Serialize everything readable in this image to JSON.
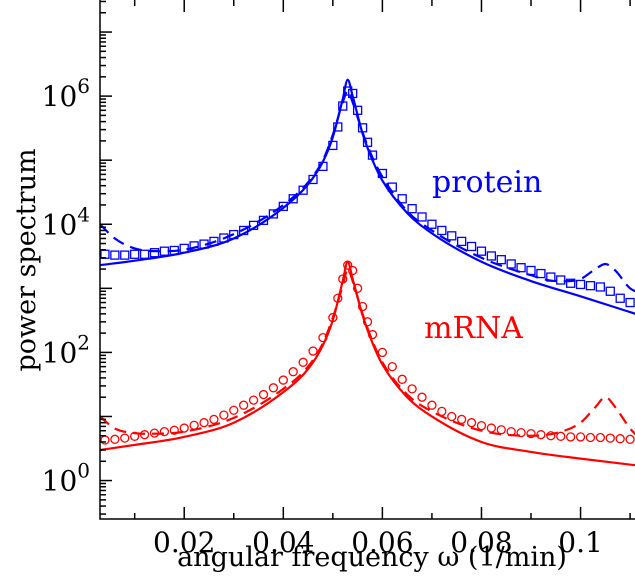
{
  "chart_data": {
    "type": "line",
    "title": "",
    "xlabel": "angular frequency ω (1/min)",
    "ylabel": "power spectrum",
    "xlim": [
      0.003,
      0.112
    ],
    "ylim_log10": [
      -0.6,
      7.5
    ],
    "log_y": true,
    "grid": false,
    "x_ticks": [
      {
        "value": 0.02,
        "label": "0.02"
      },
      {
        "value": 0.04,
        "label": "0.04"
      },
      {
        "value": 0.06,
        "label": "0.06"
      },
      {
        "value": 0.08,
        "label": "0.08"
      },
      {
        "value": 0.1,
        "label": "0.1"
      }
    ],
    "y_ticks": [
      {
        "exp": 0,
        "base": "10",
        "sup": "0"
      },
      {
        "exp": 2,
        "base": "10",
        "sup": "2"
      },
      {
        "exp": 4,
        "base": "10",
        "sup": "4"
      },
      {
        "exp": 6,
        "base": "10",
        "sup": "6"
      }
    ],
    "annotations": [
      {
        "text": "protein",
        "color": "#0000ff"
      },
      {
        "text": "mRNA",
        "color": "#ff0000"
      }
    ],
    "series": [
      {
        "group": "protein",
        "style": "solid",
        "color": "#0000ff",
        "x": [
          0.003,
          0.01,
          0.02,
          0.03,
          0.04,
          0.045,
          0.048,
          0.05,
          0.052,
          0.053,
          0.054,
          0.056,
          0.058,
          0.06,
          0.065,
          0.07,
          0.08,
          0.09,
          0.1,
          0.112
        ],
        "y": [
          2300,
          2700,
          3600,
          6000,
          18000,
          42000,
          95000,
          230000,
          900000,
          1800000,
          1000000,
          260000,
          100000,
          48000,
          15000,
          7200,
          2600,
          1300,
          750,
          380
        ]
      },
      {
        "group": "protein",
        "style": "dashed",
        "color": "#0000ff",
        "x": [
          0.003,
          0.006,
          0.01,
          0.015,
          0.02,
          0.03,
          0.04,
          0.045,
          0.048,
          0.05,
          0.052,
          0.053,
          0.054,
          0.056,
          0.058,
          0.06,
          0.065,
          0.07,
          0.08,
          0.09,
          0.095,
          0.1,
          0.103,
          0.105,
          0.107,
          0.11,
          0.112
        ],
        "y": [
          10000,
          6000,
          4200,
          3800,
          4000,
          7000,
          20000,
          45000,
          100000,
          250000,
          800000,
          1200000,
          800000,
          270000,
          110000,
          55000,
          16000,
          8000,
          3000,
          1600,
          1300,
          1400,
          2000,
          2400,
          1900,
          1000,
          850
        ]
      },
      {
        "group": "protein",
        "style": "markers",
        "marker": "square",
        "color": "#0000ff",
        "x": [
          0.004,
          0.006,
          0.008,
          0.01,
          0.012,
          0.014,
          0.016,
          0.018,
          0.02,
          0.022,
          0.024,
          0.026,
          0.028,
          0.03,
          0.032,
          0.034,
          0.036,
          0.038,
          0.04,
          0.042,
          0.044,
          0.046,
          0.048,
          0.05,
          0.051,
          0.052,
          0.053,
          0.054,
          0.055,
          0.056,
          0.057,
          0.058,
          0.06,
          0.062,
          0.064,
          0.066,
          0.068,
          0.07,
          0.072,
          0.074,
          0.076,
          0.078,
          0.08,
          0.082,
          0.084,
          0.086,
          0.088,
          0.09,
          0.092,
          0.094,
          0.096,
          0.098,
          0.1,
          0.102,
          0.104,
          0.106,
          0.108,
          0.11
        ],
        "y": [
          3400,
          3300,
          3300,
          3400,
          3400,
          3600,
          3800,
          3900,
          4200,
          4600,
          4900,
          5400,
          6100,
          6900,
          8000,
          9600,
          11500,
          14500,
          19000,
          25000,
          34000,
          50000,
          80000,
          170000,
          330000,
          700000,
          1200000,
          1100000,
          600000,
          320000,
          190000,
          120000,
          62000,
          38000,
          25000,
          17500,
          13000,
          10000,
          8000,
          6600,
          5400,
          4500,
          3800,
          3200,
          2800,
          2400,
          2100,
          1900,
          1700,
          1500,
          1350,
          1200,
          1150,
          1100,
          1050,
          900,
          700,
          600
        ]
      },
      {
        "group": "mRNA",
        "style": "solid",
        "color": "#ff0000",
        "x": [
          0.003,
          0.01,
          0.02,
          0.03,
          0.04,
          0.045,
          0.048,
          0.05,
          0.052,
          0.053,
          0.054,
          0.056,
          0.058,
          0.06,
          0.065,
          0.07,
          0.08,
          0.09,
          0.1,
          0.112
        ],
        "y": [
          3,
          3.6,
          4.8,
          8,
          24,
          55,
          130,
          320,
          1300,
          2600,
          1400,
          380,
          140,
          65,
          20,
          10,
          4,
          2.8,
          2.2,
          1.7
        ]
      },
      {
        "group": "mRNA",
        "style": "dashed",
        "color": "#ff0000",
        "x": [
          0.003,
          0.006,
          0.01,
          0.015,
          0.02,
          0.03,
          0.04,
          0.045,
          0.048,
          0.05,
          0.052,
          0.053,
          0.054,
          0.056,
          0.058,
          0.06,
          0.065,
          0.07,
          0.08,
          0.09,
          0.095,
          0.1,
          0.103,
          0.105,
          0.107,
          0.11,
          0.112
        ],
        "y": [
          10,
          6.5,
          5.5,
          5.4,
          5.8,
          9.5,
          27,
          60,
          140,
          350,
          1100,
          2000,
          1300,
          400,
          150,
          70,
          22,
          12,
          6,
          5,
          5.5,
          8,
          14,
          20,
          14,
          6.5,
          4.5
        ]
      },
      {
        "group": "mRNA",
        "style": "markers",
        "marker": "circle",
        "color": "#ff0000",
        "x": [
          0.004,
          0.006,
          0.008,
          0.01,
          0.012,
          0.014,
          0.016,
          0.018,
          0.02,
          0.022,
          0.024,
          0.026,
          0.028,
          0.03,
          0.032,
          0.034,
          0.036,
          0.038,
          0.04,
          0.042,
          0.044,
          0.046,
          0.048,
          0.05,
          0.051,
          0.052,
          0.053,
          0.054,
          0.055,
          0.056,
          0.057,
          0.058,
          0.06,
          0.062,
          0.064,
          0.066,
          0.068,
          0.07,
          0.072,
          0.074,
          0.076,
          0.078,
          0.08,
          0.082,
          0.084,
          0.086,
          0.088,
          0.09,
          0.092,
          0.094,
          0.096,
          0.098,
          0.1,
          0.102,
          0.104,
          0.106,
          0.108,
          0.11
        ],
        "y": [
          4.3,
          4.4,
          4.6,
          4.9,
          5.2,
          5.5,
          5.8,
          6.1,
          6.6,
          7.3,
          8.0,
          9.0,
          10.5,
          12.5,
          15,
          18,
          22,
          28,
          37,
          50,
          70,
          105,
          170,
          350,
          700,
          1400,
          2300,
          1900,
          1000,
          520,
          300,
          190,
          100,
          60,
          38,
          27,
          20,
          15,
          12,
          10,
          9,
          8,
          7.2,
          6.6,
          6.2,
          5.8,
          5.6,
          5.4,
          5.2,
          5.0,
          4.9,
          4.8,
          4.8,
          4.7,
          4.7,
          4.6,
          4.5,
          4.4
        ]
      }
    ]
  }
}
